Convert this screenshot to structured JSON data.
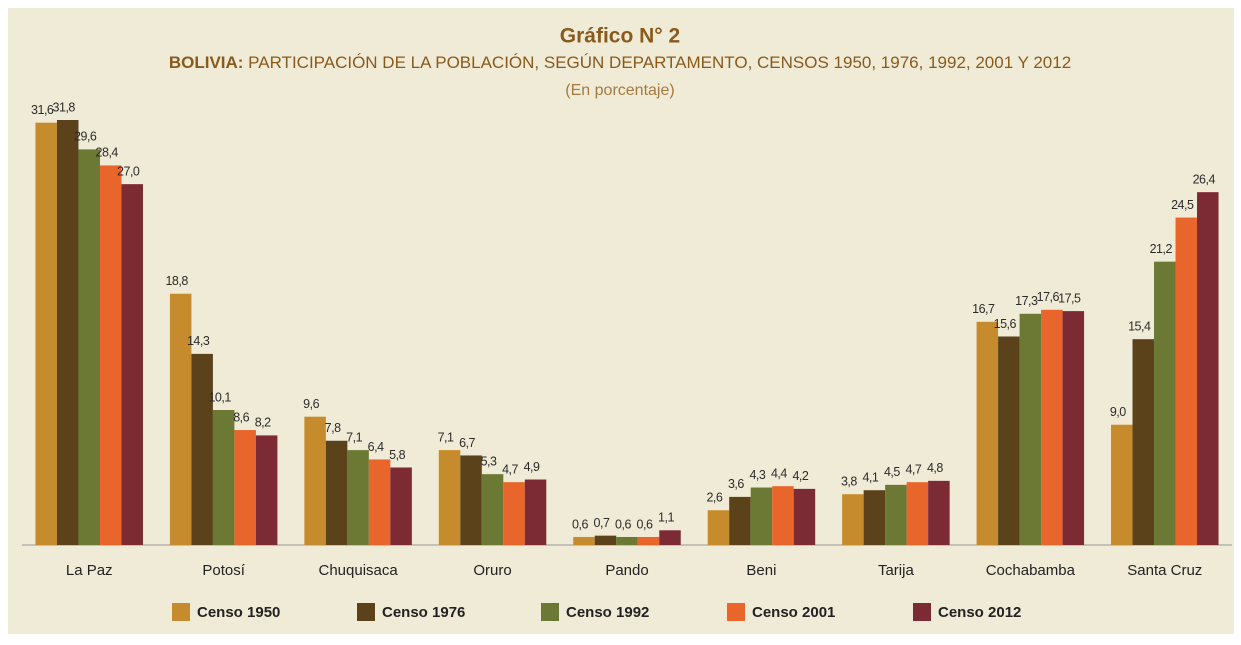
{
  "chart_data": {
    "type": "bar",
    "title": "Gráfico N° 2",
    "subtitle": [
      "BOLIVIA:",
      " PARTICIPACIÓN DE LA POBLACIÓN, SEGÚN DEPARTAMENTO, CENSOS  1950, 1976, 1992, 2001 Y 2012"
    ],
    "note": "(En porcentaje)",
    "categories": [
      "La Paz",
      "Potosí",
      "Chuquisaca",
      "Oruro",
      "Pando",
      "Beni",
      "Tarija",
      "Cochabamba",
      "Santa Cruz"
    ],
    "series": [
      {
        "name": "Censo 1950",
        "color": "#c68b2c",
        "values": [
          31.6,
          18.8,
          9.6,
          7.1,
          0.6,
          2.6,
          3.8,
          16.7,
          9.0
        ],
        "value_labels": [
          "31,6",
          "18,8",
          "9,6",
          "7,1",
          "0,6",
          "2,6",
          "3,8",
          "16,7",
          "9,0"
        ]
      },
      {
        "name": "Censo 1976",
        "color": "#5b421b",
        "values": [
          31.8,
          14.3,
          7.8,
          6.7,
          0.7,
          3.6,
          4.1,
          15.6,
          15.4
        ],
        "value_labels": [
          "31,8",
          "14,3",
          "7,8",
          "6,7",
          "0,7",
          "3,6",
          "4,1",
          "15,6",
          "15,4"
        ]
      },
      {
        "name": "Censo 1992",
        "color": "#6b7934",
        "values": [
          29.6,
          10.1,
          7.1,
          5.3,
          0.6,
          4.3,
          4.5,
          17.3,
          21.2
        ],
        "value_labels": [
          "29,6",
          "10,1",
          "7,1",
          "5,3",
          "0,6",
          "4,3",
          "4,5",
          "17,3",
          "21,2"
        ]
      },
      {
        "name": "Censo 2001",
        "color": "#e8652b",
        "values": [
          28.4,
          8.6,
          6.4,
          4.7,
          0.6,
          4.4,
          4.7,
          17.6,
          24.5
        ],
        "value_labels": [
          "28,4",
          "8,6",
          "6,4",
          "4,7",
          "0,6",
          "4,4",
          "4,7",
          "17,6",
          "24,5"
        ]
      },
      {
        "name": "Censo 2012",
        "color": "#7c2a33",
        "values": [
          27.0,
          8.2,
          5.8,
          4.9,
          1.1,
          4.2,
          4.8,
          17.5,
          26.4
        ],
        "value_labels": [
          "27,0",
          "8,2",
          "5,8",
          "4,9",
          "1,1",
          "4,2",
          "4,8",
          "17,5",
          "26,4"
        ]
      }
    ]
  }
}
